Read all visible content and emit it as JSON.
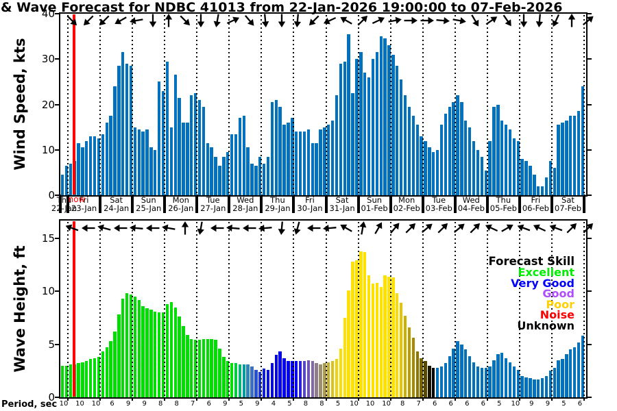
{
  "title": "& Wave Forecast for NDBC 41013 from 22-Jan-2026 19:00:00 to 07-Feb-2026",
  "now_label": "now",
  "now_color": "#ff0000",
  "legend": {
    "title": "Forecast Skill",
    "entries": [
      {
        "label": "Excellent",
        "color": "#00ee00"
      },
      {
        "label": "Very Good",
        "color": "#0000ff"
      },
      {
        "label": "Good",
        "color": "#b04dff"
      },
      {
        "label": "Poor",
        "color": "#ffd000"
      },
      {
        "label": "Noise",
        "color": "#ff0000"
      },
      {
        "label": "Unknown",
        "color": "#000000"
      }
    ]
  },
  "x_axis": {
    "day_labels": [
      {
        "day": "Thu",
        "date": "22-Jan"
      },
      {
        "day": "Fri",
        "date": "23-Jan"
      },
      {
        "day": "Sat",
        "date": "24-Jan"
      },
      {
        "day": "Sun",
        "date": "25-Jan"
      },
      {
        "day": "Mon",
        "date": "26-Jan"
      },
      {
        "day": "Tue",
        "date": "27-Jan"
      },
      {
        "day": "Wed",
        "date": "28-Jan"
      },
      {
        "day": "Thu",
        "date": "29-Jan"
      },
      {
        "day": "Fri",
        "date": "30-Jan"
      },
      {
        "day": "Sat",
        "date": "31-Jan"
      },
      {
        "day": "Sun",
        "date": "01-Feb"
      },
      {
        "day": "Mon",
        "date": "02-Feb"
      },
      {
        "day": "Tue",
        "date": "03-Feb"
      },
      {
        "day": "Wed",
        "date": "04-Feb"
      },
      {
        "day": "Thu",
        "date": "05-Feb"
      },
      {
        "day": "Fri",
        "date": "06-Feb"
      },
      {
        "day": "Sat",
        "date": "07-Feb"
      }
    ]
  },
  "period_axis": {
    "label": "Period, sec",
    "values": [
      10,
      10,
      10,
      6,
      9,
      9,
      8,
      8,
      7,
      6,
      9,
      5,
      9,
      4,
      5,
      8,
      8,
      5,
      10,
      10,
      10,
      8,
      7,
      6,
      6,
      6,
      6,
      5,
      10,
      9,
      9,
      5,
      6
    ]
  },
  "chart_data": [
    {
      "type": "bar",
      "title": "Wind speed forecast",
      "ylabel": "Wind Speed, kts",
      "ylim": [
        0,
        40
      ],
      "yticks": [
        40,
        30,
        20,
        10,
        0
      ],
      "x_start": "22-Jan 19:00",
      "x_step_hours": 3,
      "bar_color": "#0072bd",
      "values": [
        4.5,
        6.5,
        7,
        7.5,
        11.5,
        10.5,
        12,
        13,
        13,
        12.5,
        13.5,
        16,
        17.5,
        24,
        28.5,
        31.5,
        29,
        28.5,
        15,
        14.5,
        14,
        14.5,
        10.5,
        10,
        25,
        23,
        29.5,
        15,
        26.5,
        21.5,
        16,
        16,
        22,
        22.5,
        21,
        19.5,
        11.5,
        10.5,
        8.5,
        6.5,
        8.5,
        9.5,
        13.5,
        13.5,
        17,
        17.5,
        10.5,
        7,
        6.5,
        8.5,
        7,
        8.5,
        20.5,
        21,
        19.5,
        15.5,
        16,
        17,
        14,
        14,
        14,
        14.5,
        11.5,
        11.5,
        14.5,
        15,
        15.5,
        16.5,
        22,
        29,
        29.5,
        35.5,
        22.5,
        30,
        31.5,
        27,
        26,
        30,
        31.5,
        35,
        34.5,
        33,
        31,
        28.5,
        25.5,
        22,
        19.5,
        17.5,
        15.5,
        13,
        12,
        10.5,
        9.5,
        10,
        15.5,
        18,
        19.5,
        20.5,
        22,
        20.5,
        16.5,
        15,
        12,
        10,
        8.5,
        5.5,
        12,
        19.5,
        20,
        16.5,
        15.5,
        14.5,
        12.5,
        12,
        8,
        7.5,
        6.5,
        4.5,
        2,
        2,
        4,
        7.5,
        6,
        15.5,
        16,
        16.5,
        17.5,
        17.5,
        18.5,
        24
      ],
      "direction_arrows_deg": [
        45,
        135,
        135,
        150,
        170,
        90,
        -90,
        45,
        90,
        100,
        -25,
        50,
        85,
        90,
        95,
        135,
        155,
        -150,
        -45,
        -25,
        -10,
        0,
        0,
        5,
        10,
        60,
        -35,
        55,
        90,
        95,
        115,
        -90,
        -40
      ]
    },
    {
      "type": "bar",
      "title": "Wave height forecast colored by forecast skill",
      "ylabel": "Wave Height, ft",
      "ylim": [
        0,
        15
      ],
      "yticks": [
        15,
        10,
        5,
        0
      ],
      "x_start": "22-Jan 19:00",
      "x_step_hours": 3,
      "values": [
        3,
        3,
        3.1,
        3.1,
        3.2,
        3.3,
        3.4,
        3.6,
        3.7,
        3.8,
        4.3,
        4.7,
        5.3,
        6.2,
        7.8,
        9.3,
        9.8,
        9.7,
        9.5,
        9.2,
        8.6,
        8.4,
        8.3,
        8.1,
        8,
        8,
        8.8,
        9,
        8.5,
        7.6,
        6.7,
        5.9,
        5.5,
        5.4,
        5.4,
        5.5,
        5.5,
        5.5,
        5.4,
        4.6,
        3.8,
        3.4,
        3.2,
        3.2,
        3.1,
        3.1,
        3.1,
        2.9,
        2.6,
        2.4,
        2.7,
        2.6,
        3.2,
        4,
        4.3,
        3.7,
        3.4,
        3.4,
        3.4,
        3.4,
        3.4,
        3.5,
        3.4,
        3.2,
        3.1,
        3.2,
        3.3,
        3.4,
        3.6,
        4.6,
        7.5,
        10.1,
        12.8,
        12.9,
        13.8,
        13.7,
        11.5,
        10.7,
        10.8,
        10.4,
        11.5,
        11.4,
        11.3,
        9.8,
        8.9,
        7.7,
        6.6,
        5.6,
        4.3,
        3.7,
        3.4,
        3,
        2.8,
        2.8,
        2.9,
        3.2,
        3.9,
        4.6,
        5.3,
        5,
        4.5,
        3.9,
        3.3,
        2.9,
        2.8,
        2.8,
        2.9,
        3.5,
        4.1,
        4.2,
        3.7,
        3.3,
        2.9,
        2.6,
        2,
        1.9,
        1.8,
        1.7,
        1.7,
        1.8,
        2,
        2.5,
        2.8,
        3.5,
        3.6,
        4.1,
        4.5,
        4.7,
        5.2,
        5.8
      ],
      "bar_colors": [
        "#00dd00",
        "#00dd00",
        "#00dd00",
        "#00dd00",
        "#00dd00",
        "#00dd00",
        "#00dd00",
        "#00dd00",
        "#00dd00",
        "#00dd00",
        "#00dd00",
        "#00dd00",
        "#00dd00",
        "#00dd00",
        "#00dd00",
        "#00dd00",
        "#00dd00",
        "#00dd00",
        "#00dd00",
        "#00dd00",
        "#00dd00",
        "#00dd00",
        "#00dd00",
        "#00dd00",
        "#00dd00",
        "#00dd00",
        "#00dd00",
        "#00dd00",
        "#00dd00",
        "#00dd00",
        "#00dd00",
        "#00dd00",
        "#00dd00",
        "#00dd00",
        "#00dd00",
        "#00dd00",
        "#00dd00",
        "#00dd00",
        "#00dd00",
        "#00dd00",
        "#00dd00",
        "#00dd00",
        "#00dd00",
        "#00cd3b",
        "#00b473",
        "#009c9c",
        "#2f86b5",
        "#3a6fc2",
        "#2950d2",
        "#1633e6",
        "#0a1cee",
        "#0511f2",
        "#0008f5",
        "#0000f5",
        "#0000f5",
        "#0000f5",
        "#0000f5",
        "#0000f5",
        "#0000f5",
        "#2b21d9",
        "#5a46c2",
        "#7055b5",
        "#8468a4",
        "#8f7c8e",
        "#9d8f6d",
        "#ac9c4d",
        "#c2ad2f",
        "#d9c319",
        "#edd40a",
        "#f9de03",
        "#ffe100",
        "#ffe100",
        "#ffe100",
        "#ffe100",
        "#ffe100",
        "#ffe100",
        "#ffe100",
        "#ffe100",
        "#ffe100",
        "#ffe100",
        "#ffe100",
        "#ffe100",
        "#ffe100",
        "#fdda00",
        "#e6c500",
        "#cfb000",
        "#ba9d00",
        "#a58b00",
        "#8d7600",
        "#786500",
        "#574900",
        "#191500",
        "#000000",
        "#0072bd",
        "#0072bd",
        "#0072bd",
        "#0072bd",
        "#0072bd",
        "#0072bd",
        "#0072bd",
        "#0072bd",
        "#0072bd",
        "#0072bd",
        "#0072bd",
        "#0072bd",
        "#0072bd",
        "#0072bd",
        "#0072bd",
        "#0072bd",
        "#0072bd",
        "#0072bd",
        "#0072bd",
        "#0072bd",
        "#0072bd",
        "#0072bd",
        "#0072bd",
        "#0072bd",
        "#0072bd",
        "#0072bd",
        "#0072bd",
        "#0072bd",
        "#0072bd",
        "#0072bd",
        "#0072bd",
        "#0072bd",
        "#0072bd",
        "#0072bd",
        "#0072bd",
        "#0072bd",
        "#0072bd"
      ],
      "direction_arrows_deg": [
        -160,
        180,
        -165,
        180,
        -175,
        180,
        -170,
        -90,
        100,
        180,
        -175,
        180,
        175,
        95,
        105,
        180,
        175,
        -150,
        -80,
        -60,
        -50,
        -45,
        -40,
        -45,
        -40,
        -45,
        -155,
        -30,
        -160,
        -155,
        -160,
        -45,
        -45
      ]
    }
  ]
}
